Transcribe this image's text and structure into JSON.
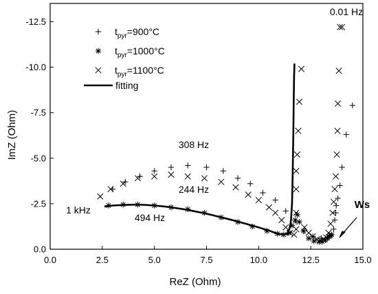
{
  "chart_data": {
    "type": "scatter",
    "xlabel": "ReZ (Ohm)",
    "ylabel": "ImZ (Ohm)",
    "xlim": [
      0,
      15
    ],
    "ylim": [
      0,
      -13.5
    ],
    "x_ticks": [
      0.0,
      2.5,
      5.0,
      7.5,
      10.0,
      12.5,
      15.0
    ],
    "x_tick_labels": [
      "0.0",
      "2.5",
      "5.0",
      "7.5",
      "10.0",
      "12.5",
      "15.0"
    ],
    "y_ticks": [
      0,
      -2.5,
      -5.0,
      -7.5,
      -10.0,
      -12.5
    ],
    "y_tick_labels": [
      "0.0",
      "-2.5",
      "-5.0",
      "-7.5",
      "-10.0",
      "-12.5"
    ],
    "grid": false,
    "legend_position": "top-left",
    "legend": [
      {
        "marker": "plus",
        "base": "t",
        "sub": "pyr",
        "suffix": "=900°C"
      },
      {
        "marker": "asterisk",
        "base": "t",
        "sub": "pyr",
        "suffix": "=1000°C"
      },
      {
        "marker": "cross",
        "base": "t",
        "sub": "pyr",
        "suffix": "=1100°C"
      },
      {
        "marker": "line",
        "text": "fitting"
      }
    ],
    "annotations": {
      "f_001hz": "0.01 Hz",
      "f_308hz": "308 Hz",
      "f_244hz": "244 Hz",
      "f_1khz": "1 kHz",
      "f_494hz": "494 Hz",
      "ws": "Ws"
    },
    "series": [
      {
        "marker": "plus",
        "x": [
          3.0,
          3.6,
          4.3,
          5.0,
          5.8,
          6.6,
          7.5,
          8.3,
          9.0,
          9.6,
          10.2,
          10.8,
          11.3,
          11.8,
          12.2,
          12.6,
          13.0,
          13.3,
          13.5,
          13.6,
          13.65,
          13.7,
          13.72,
          13.8,
          13.9,
          14.0,
          14.2,
          14.5
        ],
        "y": [
          -3.3,
          -3.7,
          -4.0,
          -4.3,
          -4.5,
          -4.6,
          -4.5,
          -4.3,
          -3.9,
          -3.6,
          -3.1,
          -2.7,
          -2.1,
          -1.5,
          -1.0,
          -0.7,
          -0.6,
          -0.65,
          -0.8,
          -1.1,
          -1.6,
          -2.0,
          -2.4,
          -2.8,
          -3.5,
          -4.5,
          -6.3,
          -7.9
        ]
      },
      {
        "marker": "asterisk",
        "x": [
          2.8,
          3.5,
          4.2,
          5.0,
          5.8,
          6.6,
          7.4,
          8.2,
          9.0,
          9.7,
          10.4,
          10.9,
          11.2,
          11.45,
          11.6,
          11.75,
          11.85,
          11.95,
          12.15,
          12.4,
          12.65,
          12.9,
          13.05,
          13.2,
          13.3,
          13.4,
          13.45,
          13.5
        ],
        "y": [
          -2.4,
          -2.45,
          -2.45,
          -2.4,
          -2.3,
          -2.2,
          -2.0,
          -1.75,
          -1.5,
          -1.25,
          -1.0,
          -0.85,
          -0.8,
          -0.9,
          -1.3,
          -1.6,
          -1.9,
          -1.5,
          -1.0,
          -0.6,
          -0.45,
          -0.4,
          -0.42,
          -0.5,
          -0.6,
          -0.7,
          -0.75,
          -0.8
        ]
      },
      {
        "marker": "cross",
        "x": [
          2.4,
          2.9,
          3.5,
          4.2,
          5.0,
          5.8,
          6.6,
          7.4,
          8.2,
          8.9,
          9.5,
          10.0,
          10.5,
          10.8,
          11.1,
          11.3,
          11.5,
          11.7,
          11.8,
          11.8,
          11.8,
          11.8,
          11.85,
          11.9,
          11.95,
          12.05,
          12.2,
          12.4,
          12.6,
          12.8,
          12.95,
          13.1,
          13.25,
          13.35,
          13.45,
          13.55,
          13.6,
          13.65,
          13.7,
          13.75,
          13.78,
          13.8,
          13.85,
          13.9,
          14.0
        ],
        "y": [
          -2.9,
          -3.3,
          -3.6,
          -3.9,
          -4.0,
          -4.1,
          -4.0,
          -3.9,
          -3.7,
          -3.4,
          -3.0,
          -2.7,
          -2.3,
          -2.0,
          -1.6,
          -1.2,
          -0.9,
          -0.8,
          -1.1,
          -2.0,
          -3.3,
          -4.3,
          -5.2,
          -6.5,
          -8.1,
          -9.9,
          -1.2,
          -0.9,
          -0.7,
          -0.55,
          -0.5,
          -0.55,
          -0.65,
          -0.9,
          -1.4,
          -2.0,
          -2.6,
          -3.3,
          -4.0,
          -5.2,
          -6.5,
          -8.0,
          -9.8,
          -12.2,
          -12.2
        ]
      },
      {
        "marker": "line",
        "x": [
          2.6,
          3.0,
          3.5,
          4.0,
          4.5,
          5.0,
          5.5,
          6.0,
          6.5,
          7.0,
          7.5,
          8.0,
          8.5,
          9.0,
          9.5,
          10.0,
          10.5,
          10.9,
          11.2,
          11.4,
          11.5,
          11.55,
          11.6,
          11.63,
          11.66,
          11.68,
          11.7,
          11.72
        ],
        "y": [
          -2.35,
          -2.4,
          -2.43,
          -2.45,
          -2.44,
          -2.4,
          -2.35,
          -2.27,
          -2.18,
          -2.07,
          -1.95,
          -1.81,
          -1.67,
          -1.52,
          -1.36,
          -1.2,
          -1.02,
          -0.86,
          -0.8,
          -0.9,
          -1.2,
          -1.6,
          -2.5,
          -4.0,
          -6.0,
          -8.0,
          -9.5,
          -10.2
        ]
      }
    ]
  }
}
